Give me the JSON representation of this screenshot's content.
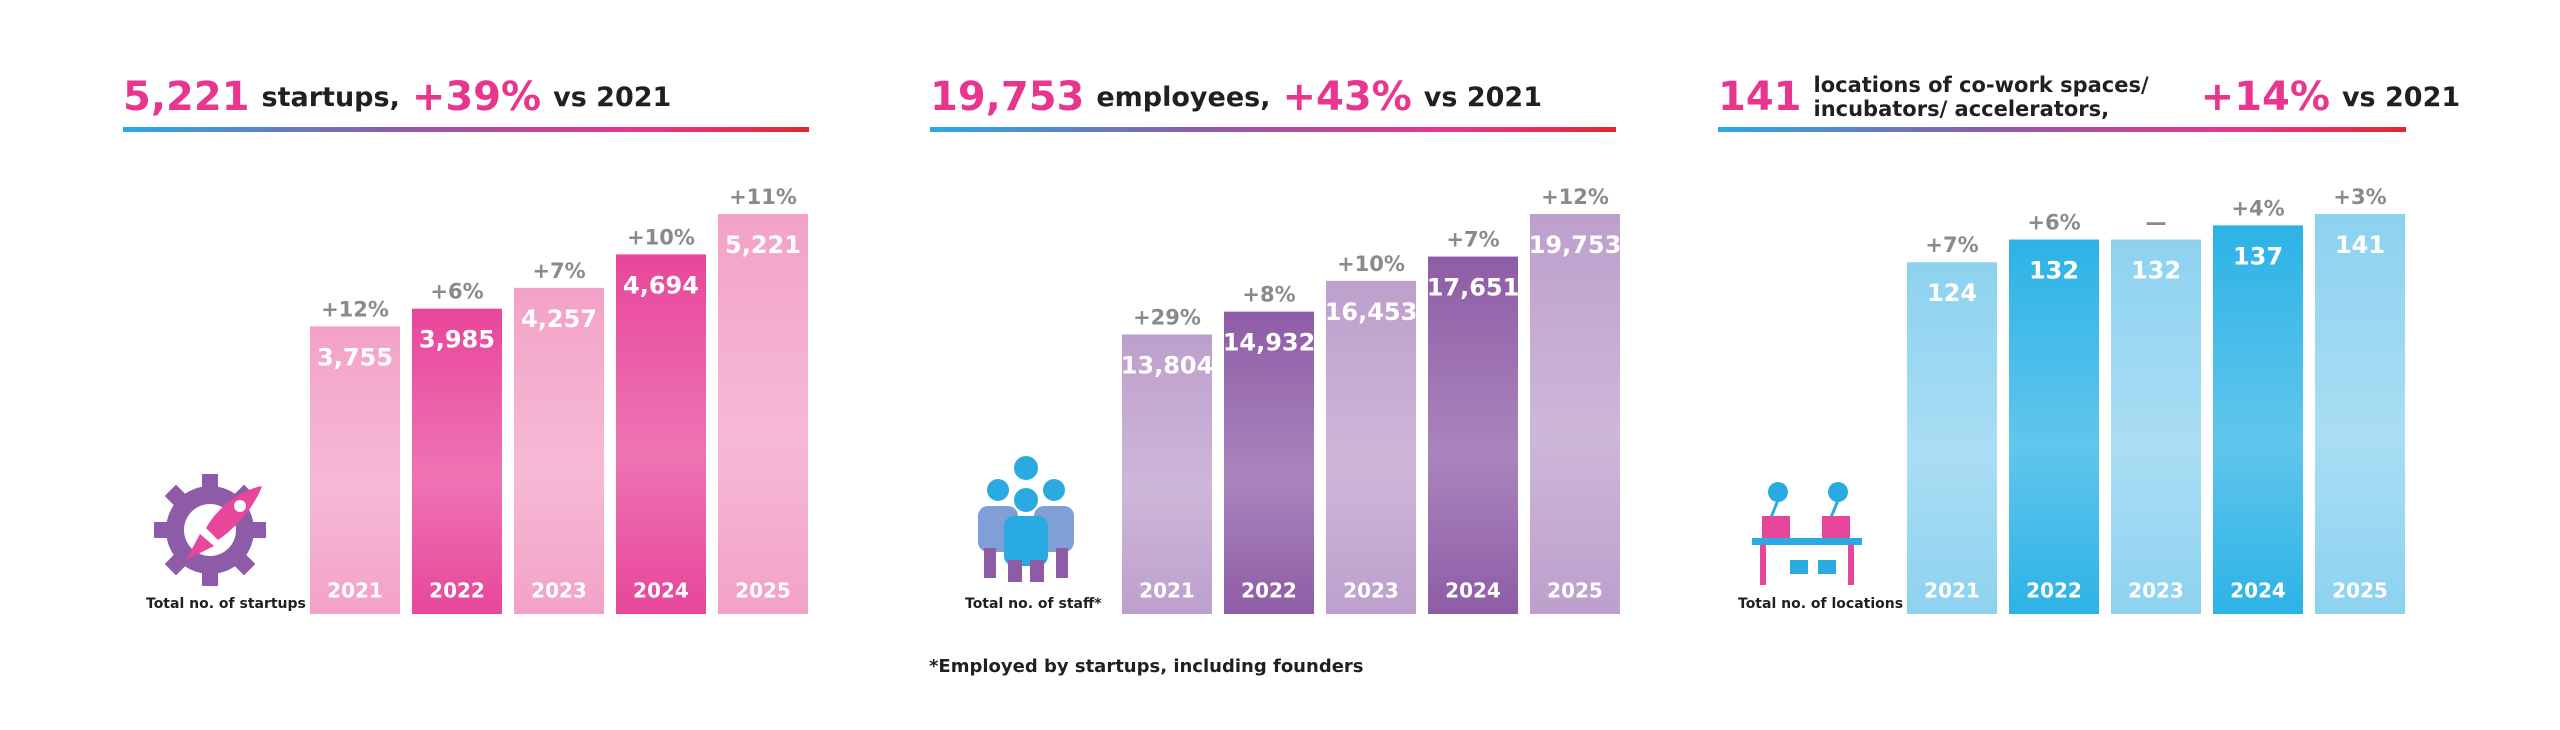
{
  "chart_data": [
    {
      "type": "bar",
      "headline": "5,221",
      "title_lines": [
        "startups,"
      ],
      "change": "+39%",
      "change_suffix": "vs 2021",
      "caption": "Total no. of startups",
      "categories": [
        "2021",
        "2022",
        "2023",
        "2024",
        "2025"
      ],
      "values": [
        3755,
        3985,
        4257,
        4694,
        5221
      ],
      "value_labels": [
        "3,755",
        "3,985",
        "4,257",
        "4,694",
        "5,221"
      ],
      "growth_labels": [
        "+12%",
        "+6%",
        "+7%",
        "+10%",
        "+11%"
      ],
      "colors": [
        "#f3a2c7",
        "#e8469a",
        "#f3a2c7",
        "#e8469a",
        "#f3a2c7"
      ]
    },
    {
      "type": "bar",
      "headline": "19,753",
      "title_lines": [
        "employees,"
      ],
      "change": "+43%",
      "change_suffix": "vs 2021",
      "caption": "Total no. of staff*",
      "categories": [
        "2021",
        "2022",
        "2023",
        "2024",
        "2025"
      ],
      "values": [
        13804,
        14932,
        16453,
        17651,
        19753
      ],
      "value_labels": [
        "13,804",
        "14,932",
        "16,453",
        "17,651",
        "19,753"
      ],
      "growth_labels": [
        "+29%",
        "+8%",
        "+10%",
        "+7%",
        "+12%"
      ],
      "colors": [
        "#bd9fcc",
        "#8e5ca6",
        "#bd9fcc",
        "#8e5ca6",
        "#bd9fcc"
      ]
    },
    {
      "type": "bar",
      "headline": "141",
      "title_lines": [
        "locations of co-work spaces/",
        "incubators/ accelerators,"
      ],
      "change": "+14%",
      "change_suffix": "vs 2021",
      "caption": "Total no. of locations",
      "categories": [
        "2021",
        "2022",
        "2023",
        "2024",
        "2025"
      ],
      "values": [
        124,
        132,
        132,
        137,
        141
      ],
      "value_labels": [
        "124",
        "132",
        "132",
        "137",
        "141"
      ],
      "growth_labels": [
        "+7%",
        "+6%",
        "—",
        "+4%",
        "+3%"
      ],
      "colors": [
        "#8dd2f0",
        "#2cb3e6",
        "#8dd2f0",
        "#2cb3e6",
        "#8dd2f0"
      ]
    }
  ],
  "footnote": "*Employed by startups, including founders"
}
